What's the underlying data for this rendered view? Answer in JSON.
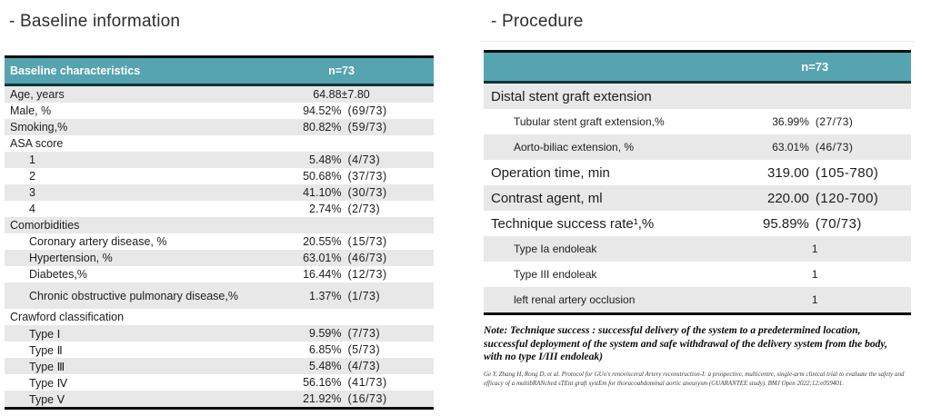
{
  "colors": {
    "header_teal": "#56a4af",
    "row_stripe": "#e8e8e8",
    "table_border": "#0d0d0d"
  },
  "baseline": {
    "title": "- Baseline information",
    "table": {
      "header": {
        "label": "Baseline characteristics",
        "value": "n=73"
      },
      "rows": [
        {
          "label": "Age, years",
          "num": "64.88±7.80",
          "paren": ""
        },
        {
          "label": "Male, %",
          "num": "94.52%",
          "paren": "(69/73)"
        },
        {
          "label": "Smoking,%",
          "num": "80.82%",
          "paren": "(59/73)"
        },
        {
          "label": "ASA score",
          "num": "",
          "paren": ""
        },
        {
          "label": "1",
          "indent": true,
          "num": "5.48%",
          "paren": "(4/73)"
        },
        {
          "label": "2",
          "indent": true,
          "num": "50.68%",
          "paren": "(37/73)"
        },
        {
          "label": "3",
          "indent": true,
          "num": "41.10%",
          "paren": "(30/73)"
        },
        {
          "label": "4",
          "indent": true,
          "num": "2.74%",
          "paren": "(2/73)"
        },
        {
          "label": "Comorbidities",
          "num": "",
          "paren": ""
        },
        {
          "label": "Coronary artery disease, %",
          "indent": true,
          "num": "20.55%",
          "paren": "(15/73)"
        },
        {
          "label": "Hypertension, %",
          "indent": true,
          "num": "63.01%",
          "paren": "(46/73)"
        },
        {
          "label": "Diabetes,%",
          "indent": true,
          "num": "16.44%",
          "paren": "(12/73)"
        },
        {
          "label": "Chronic obstructive pulmonary disease,%",
          "indent": true,
          "tall": true,
          "num": "1.37%",
          "paren": "(1/73)"
        },
        {
          "label": "Crawford classification",
          "num": "",
          "paren": ""
        },
        {
          "label": "Type Ⅰ",
          "indent": true,
          "num": "9.59%",
          "paren": "(7/73)"
        },
        {
          "label": "Type Ⅱ",
          "indent": true,
          "num": "6.85%",
          "paren": "(5/73)"
        },
        {
          "label": "Type Ⅲ",
          "indent": true,
          "num": "5.48%",
          "paren": "(4/73)"
        },
        {
          "label": "Type Ⅳ",
          "indent": true,
          "num": "56.16%",
          "paren": "(41/73)"
        },
        {
          "label": "Type Ⅴ",
          "indent": true,
          "num": "21.92%",
          "paren": "(16/73)"
        }
      ]
    }
  },
  "procedure": {
    "title": "- Procedure",
    "table": {
      "header": {
        "label": "",
        "value": "n=73"
      },
      "rows": [
        {
          "label": "Distal stent graft extension",
          "size": "large",
          "num": "",
          "paren": ""
        },
        {
          "label": "Tubular stent graft extension,%",
          "indent": true,
          "size": "small",
          "num": "36.99%",
          "paren": "(27/73)"
        },
        {
          "label": "Aorto-biliac extension, %",
          "indent": true,
          "size": "small",
          "num": "63.01%",
          "paren": "(46/73)"
        },
        {
          "label": "Operation time, min",
          "size": "large",
          "num": "319.00",
          "paren": "(105-780)"
        },
        {
          "label": "Contrast agent, ml",
          "size": "large",
          "num": "220.00",
          "paren": "(120-700)"
        },
        {
          "label": "Technique success rate¹,%",
          "size": "large",
          "num": "95.89%",
          "paren": "(70/73)"
        },
        {
          "label": "Type Ia endoleak",
          "indent": true,
          "size": "small",
          "num": "1",
          "paren": ""
        },
        {
          "label": "Type III endoleak",
          "indent": true,
          "size": "small",
          "num": "1",
          "paren": ""
        },
        {
          "label": "left renal artery occlusion",
          "indent": true,
          "size": "small",
          "num": "1",
          "paren": ""
        }
      ]
    },
    "note": {
      "line1": "Note: Technique success : successful delivery of the system to a predetermined location,",
      "line2": "successful deployment of the system and safe withdrawal of the delivery system from the body,",
      "line3": "with no type I/III endoleak)"
    },
    "citation": "Ge Y, Zhang H, Rong D, et al. Protocol for GUo's renovisceral Artery reconstruction-I: a prospective, multicentre, single-arm clinical trial to evaluate the safety and efficacy of a multibRANched sTEnt graft systEm for thoracoabdominal aortic aneurysm (GUARANTEE study). BMJ Open 2022;12:e059401."
  }
}
